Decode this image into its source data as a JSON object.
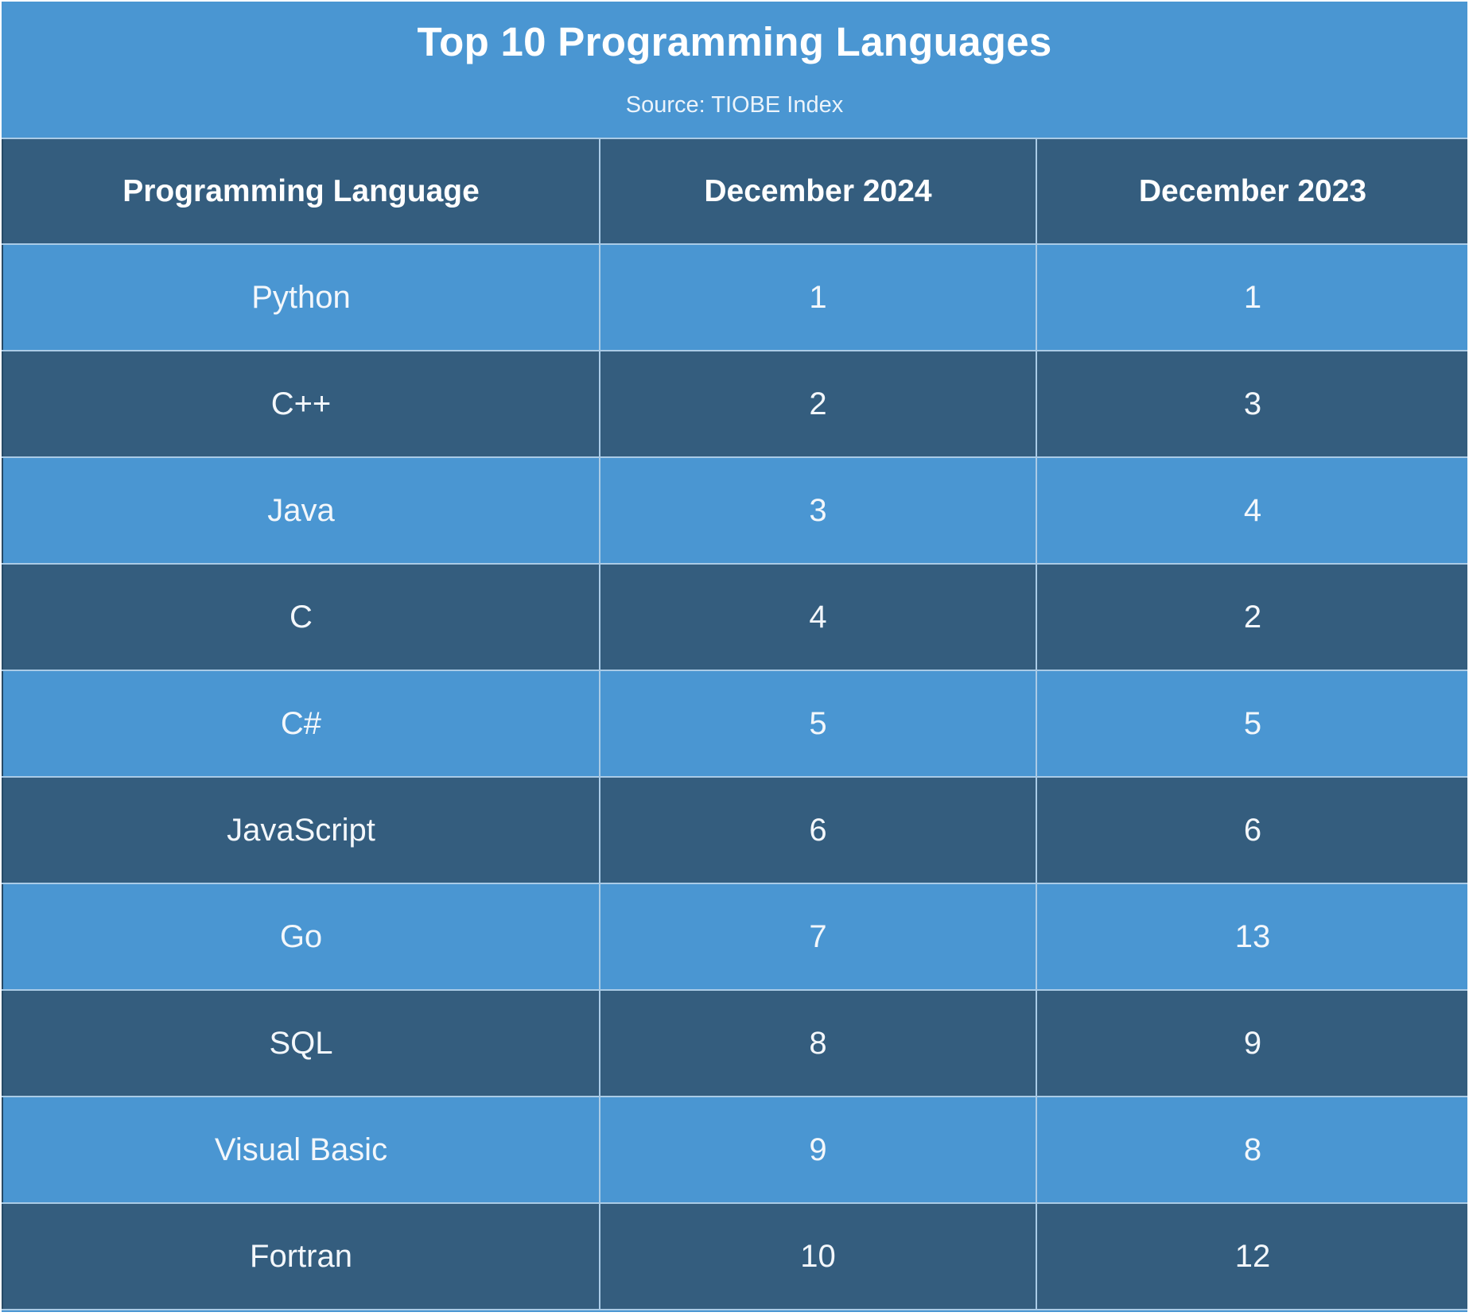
{
  "chart_data": {
    "type": "table",
    "title": "Top 10 Programming Languages",
    "subtitle": "Source: TIOBE Index",
    "columns": [
      "Programming Language",
      "December 2024",
      "December 2023"
    ],
    "rows": [
      {
        "language": "Python",
        "dec_2024": "1",
        "dec_2023": "1"
      },
      {
        "language": "C++",
        "dec_2024": "2",
        "dec_2023": "3"
      },
      {
        "language": "Java",
        "dec_2024": "3",
        "dec_2023": "4"
      },
      {
        "language": "C",
        "dec_2024": "4",
        "dec_2023": "2"
      },
      {
        "language": "C#",
        "dec_2024": "5",
        "dec_2023": "5"
      },
      {
        "language": "JavaScript",
        "dec_2024": "6",
        "dec_2023": "6"
      },
      {
        "language": "Go",
        "dec_2024": "7",
        "dec_2023": "13"
      },
      {
        "language": "SQL",
        "dec_2024": "8",
        "dec_2023": "9"
      },
      {
        "language": "Visual Basic",
        "dec_2024": "9",
        "dec_2023": "8"
      },
      {
        "language": "Fortran",
        "dec_2024": "10",
        "dec_2023": "12"
      }
    ]
  },
  "colors": {
    "light_row": "#4a96d2",
    "dark_row": "#345d7e",
    "grid_line": "#aacbe6",
    "text": "#ffffff"
  }
}
